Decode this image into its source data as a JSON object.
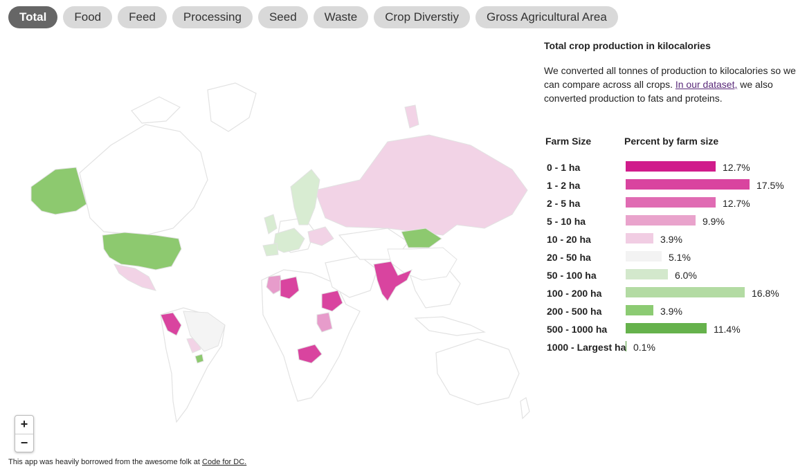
{
  "tabs": [
    "Total",
    "Food",
    "Feed",
    "Processing",
    "Seed",
    "Waste",
    "Crop Diverstiy",
    "Gross Agricultural Area"
  ],
  "active_tab": "Total",
  "map": {
    "zoom_in": "+",
    "zoom_out": "−"
  },
  "panel": {
    "title": "Total crop production in kilocalories",
    "text_before": "We converted all tonnes of production to kilocalories so we can compare across all crops. ",
    "link": "In our dataset,",
    "text_after": " we also converted production to fats and proteins."
  },
  "table": {
    "col1": "Farm Size",
    "col2": "Percent by farm size",
    "rows": [
      {
        "label": "0 - 1 ha",
        "pct_text": "12.7%",
        "value": 12.7,
        "color": "#d01c8b"
      },
      {
        "label": "1 - 2 ha",
        "pct_text": "17.5%",
        "value": 17.5,
        "color": "#d9449f"
      },
      {
        "label": "2 - 5 ha",
        "pct_text": "12.7%",
        "value": 12.7,
        "color": "#e06bb3"
      },
      {
        "label": "5 - 10 ha",
        "pct_text": "9.9%",
        "value": 9.9,
        "color": "#e9a3cc"
      },
      {
        "label": "10 - 20 ha",
        "pct_text": "3.9%",
        "value": 3.9,
        "color": "#f1cde3"
      },
      {
        "label": "20 - 50 ha",
        "pct_text": "5.1%",
        "value": 5.1,
        "color": "#f3f3f3"
      },
      {
        "label": "50 - 100 ha",
        "pct_text": "6.0%",
        "value": 6.0,
        "color": "#d3e8cc"
      },
      {
        "label": "100 - 200 ha",
        "pct_text": "16.8%",
        "value": 16.8,
        "color": "#b3dba3"
      },
      {
        "label": "200 - 500 ha",
        "pct_text": "3.9%",
        "value": 3.9,
        "color": "#8ccb73"
      },
      {
        "label": "500 - 1000 ha",
        "pct_text": "11.4%",
        "value": 11.4,
        "color": "#66b24c"
      },
      {
        "label": "1000 - Largest ha",
        "pct_text": "0.1%",
        "value": 0.1,
        "color": "#4d9a35"
      }
    ]
  },
  "footer": {
    "text": "This app was heavily borrowed from the awesome folk at ",
    "link": "Code for DC."
  },
  "map_colors": {
    "land": "#ffffff",
    "border": "#e2e2e2",
    "green_strong": "#8dc96f",
    "green_light": "#d8ecd2",
    "pink_light": "#f2d3e6",
    "pink_mid": "#e79ccb",
    "pink_strong": "#d9449f",
    "neutral": "#f4f4f4"
  }
}
